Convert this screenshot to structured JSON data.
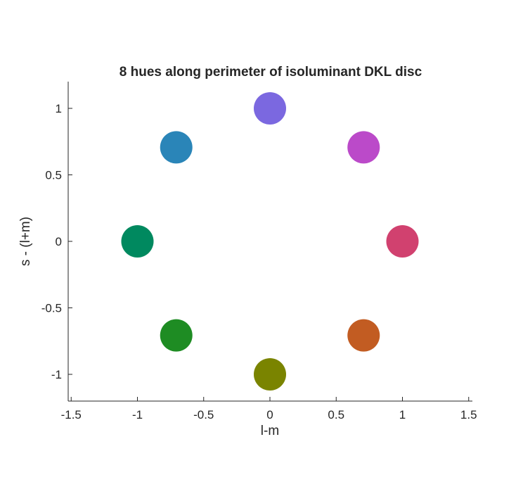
{
  "chart_data": {
    "type": "scatter",
    "title": "8 hues along perimeter of isoluminant DKL disc",
    "xlabel": "l-m",
    "ylabel": "s - (l+m)",
    "xlim": [
      -1.5,
      1.5
    ],
    "ylim": [
      -1.2,
      1.2
    ],
    "xticks": [
      -1.5,
      -1,
      -0.5,
      0,
      0.5,
      1,
      1.5
    ],
    "xtick_labels": [
      "-1.5",
      "-1",
      "-0.5",
      "0",
      "0.5",
      "1",
      "1.5"
    ],
    "yticks": [
      -1,
      -0.5,
      0,
      0.5,
      1
    ],
    "ytick_labels": [
      "-1",
      "-0.5",
      "0",
      "0.5",
      "1"
    ],
    "grid": false,
    "legend": "none",
    "points": [
      {
        "x": 1.0,
        "y": 0.0,
        "color": "#d1416f"
      },
      {
        "x": 0.707,
        "y": 0.707,
        "color": "#bb4ac9"
      },
      {
        "x": 0.0,
        "y": 1.0,
        "color": "#7b68e0"
      },
      {
        "x": -0.707,
        "y": 0.707,
        "color": "#2a85b8"
      },
      {
        "x": -1.0,
        "y": 0.0,
        "color": "#00895f"
      },
      {
        "x": -0.707,
        "y": -0.707,
        "color": "#1e8c23"
      },
      {
        "x": 0.0,
        "y": -1.0,
        "color": "#7a8400"
      },
      {
        "x": 0.707,
        "y": -0.707,
        "color": "#c25c22"
      }
    ]
  }
}
